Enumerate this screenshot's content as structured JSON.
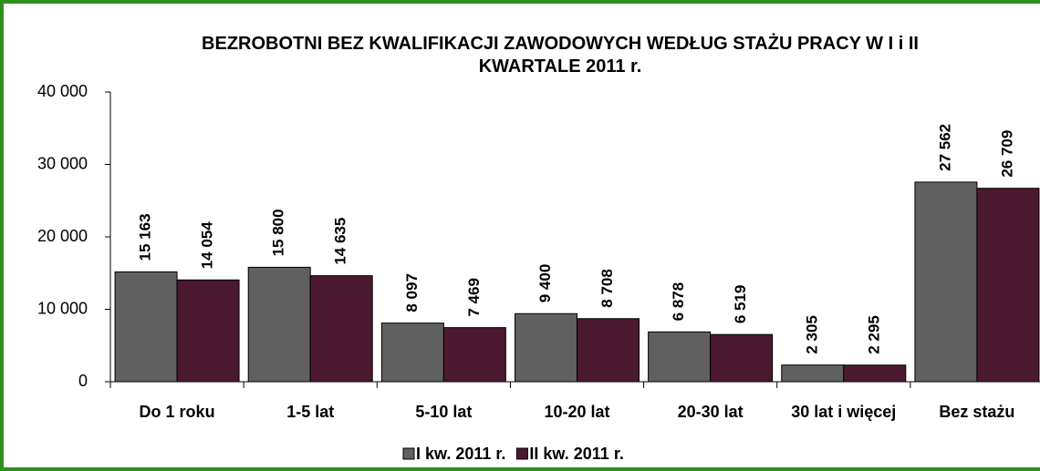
{
  "chart_data": {
    "type": "bar",
    "title": "BEZROBOTNI  BEZ KWALIFIKACJI ZAWODOWYCH WEDŁUG STAŻU  PRACY W I i II KWARTALE 2011 r.",
    "categories": [
      "Do 1 roku",
      "1-5 lat",
      "5-10 lat",
      "10-20 lat",
      "20-30 lat",
      "30 lat i więcej",
      "Bez stażu"
    ],
    "series": [
      {
        "name": "I kw. 2011 r.",
        "color": "#606060",
        "values": [
          15163,
          15800,
          8097,
          9400,
          6878,
          2305,
          27562
        ],
        "value_labels": [
          "15 163",
          "15 800",
          "8 097",
          "9 400",
          "6 878",
          "2 305",
          "27 562"
        ]
      },
      {
        "name": "II kw. 2011 r.",
        "color": "#4b1a30",
        "values": [
          14054,
          14635,
          7469,
          8708,
          6519,
          2295,
          26709
        ],
        "value_labels": [
          "14 054",
          "14 635",
          "7 469",
          "8 708",
          "6 519",
          "2 295",
          "26 709"
        ]
      }
    ],
    "ylim": [
      0,
      40000
    ],
    "yticks": [
      {
        "value": 0,
        "label": "0"
      },
      {
        "value": 10000,
        "label": "10 000"
      },
      {
        "value": 20000,
        "label": "20 000"
      },
      {
        "value": 30000,
        "label": "30 000"
      },
      {
        "value": 40000,
        "label": "40 000"
      }
    ],
    "legend": "bottom"
  }
}
